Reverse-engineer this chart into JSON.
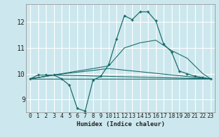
{
  "xlabel": "Humidex (Indice chaleur)",
  "bg_color": "#cce8ee",
  "grid_color": "#ffffff",
  "line_color": "#1a6b6b",
  "xlim": [
    -0.5,
    23.5
  ],
  "ylim": [
    8.5,
    12.7
  ],
  "yticks": [
    9,
    10,
    11,
    12
  ],
  "xticks": [
    0,
    1,
    2,
    3,
    4,
    5,
    6,
    7,
    8,
    9,
    10,
    11,
    12,
    13,
    14,
    15,
    16,
    17,
    18,
    19,
    20,
    21,
    22,
    23
  ],
  "line1_x": [
    0,
    1,
    2,
    3,
    4,
    5,
    6,
    7,
    8,
    9,
    10,
    11,
    12,
    13,
    14,
    15,
    16,
    17,
    18,
    19,
    20,
    21,
    22,
    23
  ],
  "line1_y": [
    9.8,
    9.95,
    9.95,
    9.95,
    9.8,
    9.55,
    8.65,
    8.55,
    9.75,
    9.9,
    10.35,
    11.35,
    12.25,
    12.1,
    12.4,
    12.4,
    12.05,
    11.15,
    10.85,
    10.1,
    10.0,
    9.9,
    9.85,
    9.8
  ],
  "line2_x": [
    0,
    3,
    10,
    11,
    12,
    13,
    14,
    15,
    16,
    17,
    18,
    19,
    20,
    21,
    22,
    23
  ],
  "line2_y": [
    9.8,
    9.95,
    10.3,
    10.65,
    11.0,
    11.1,
    11.2,
    11.25,
    11.3,
    11.1,
    10.9,
    10.75,
    10.6,
    10.3,
    10.0,
    9.8
  ],
  "line3_x": [
    0,
    23
  ],
  "line3_y": [
    9.8,
    9.8
  ],
  "line4_x": [
    0,
    3,
    10,
    23
  ],
  "line4_y": [
    9.8,
    9.95,
    10.2,
    9.8
  ],
  "line5_x": [
    0,
    3,
    23
  ],
  "line5_y": [
    9.8,
    9.95,
    9.8
  ]
}
